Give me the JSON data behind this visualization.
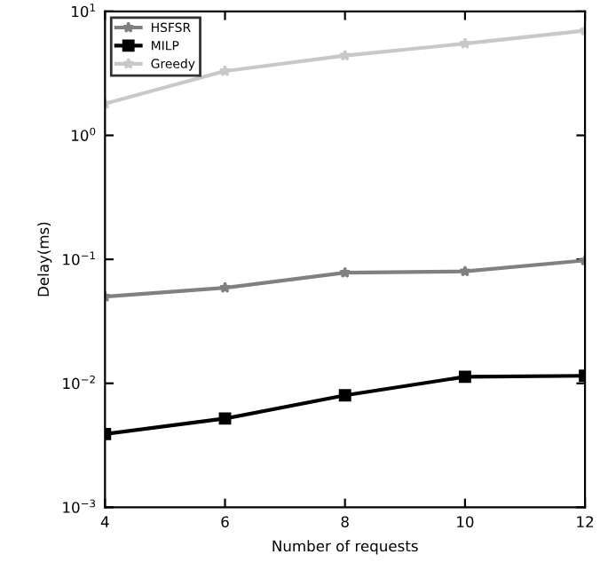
{
  "chart_data": {
    "type": "line",
    "xlabel": "Number of requests",
    "ylabel": "Delay(ms)",
    "x": [
      4,
      6,
      8,
      10,
      12
    ],
    "series": [
      {
        "name": "HSFSR",
        "color": "#808080",
        "marker": "star",
        "values": [
          0.05,
          0.059,
          0.078,
          0.08,
          0.098
        ]
      },
      {
        "name": "MILP",
        "color": "#000000",
        "marker": "square",
        "values": [
          0.0039,
          0.0052,
          0.008,
          0.0113,
          0.0115
        ]
      },
      {
        "name": "Greedy",
        "color": "#c8c8c8",
        "marker": "star",
        "values": [
          1.8,
          3.3,
          4.4,
          5.5,
          7
        ]
      }
    ],
    "log": "y",
    "xlim": [
      4,
      12
    ],
    "xticks": [
      4,
      6,
      8,
      10,
      12
    ],
    "ylim": [
      0.001,
      10
    ],
    "yticks": [
      {
        "value": 0.001,
        "label": "10$^{−3}$"
      },
      {
        "value": 0.01,
        "label": "10$^{−2}$"
      },
      {
        "value": 0.1,
        "label": "10$^{−1}$"
      },
      {
        "value": 1,
        "label": "10$^{0}$"
      },
      {
        "value": 10,
        "label": "10$^{1}$"
      }
    ],
    "grid": false,
    "legend": "top left",
    "line_style": "solid"
  }
}
